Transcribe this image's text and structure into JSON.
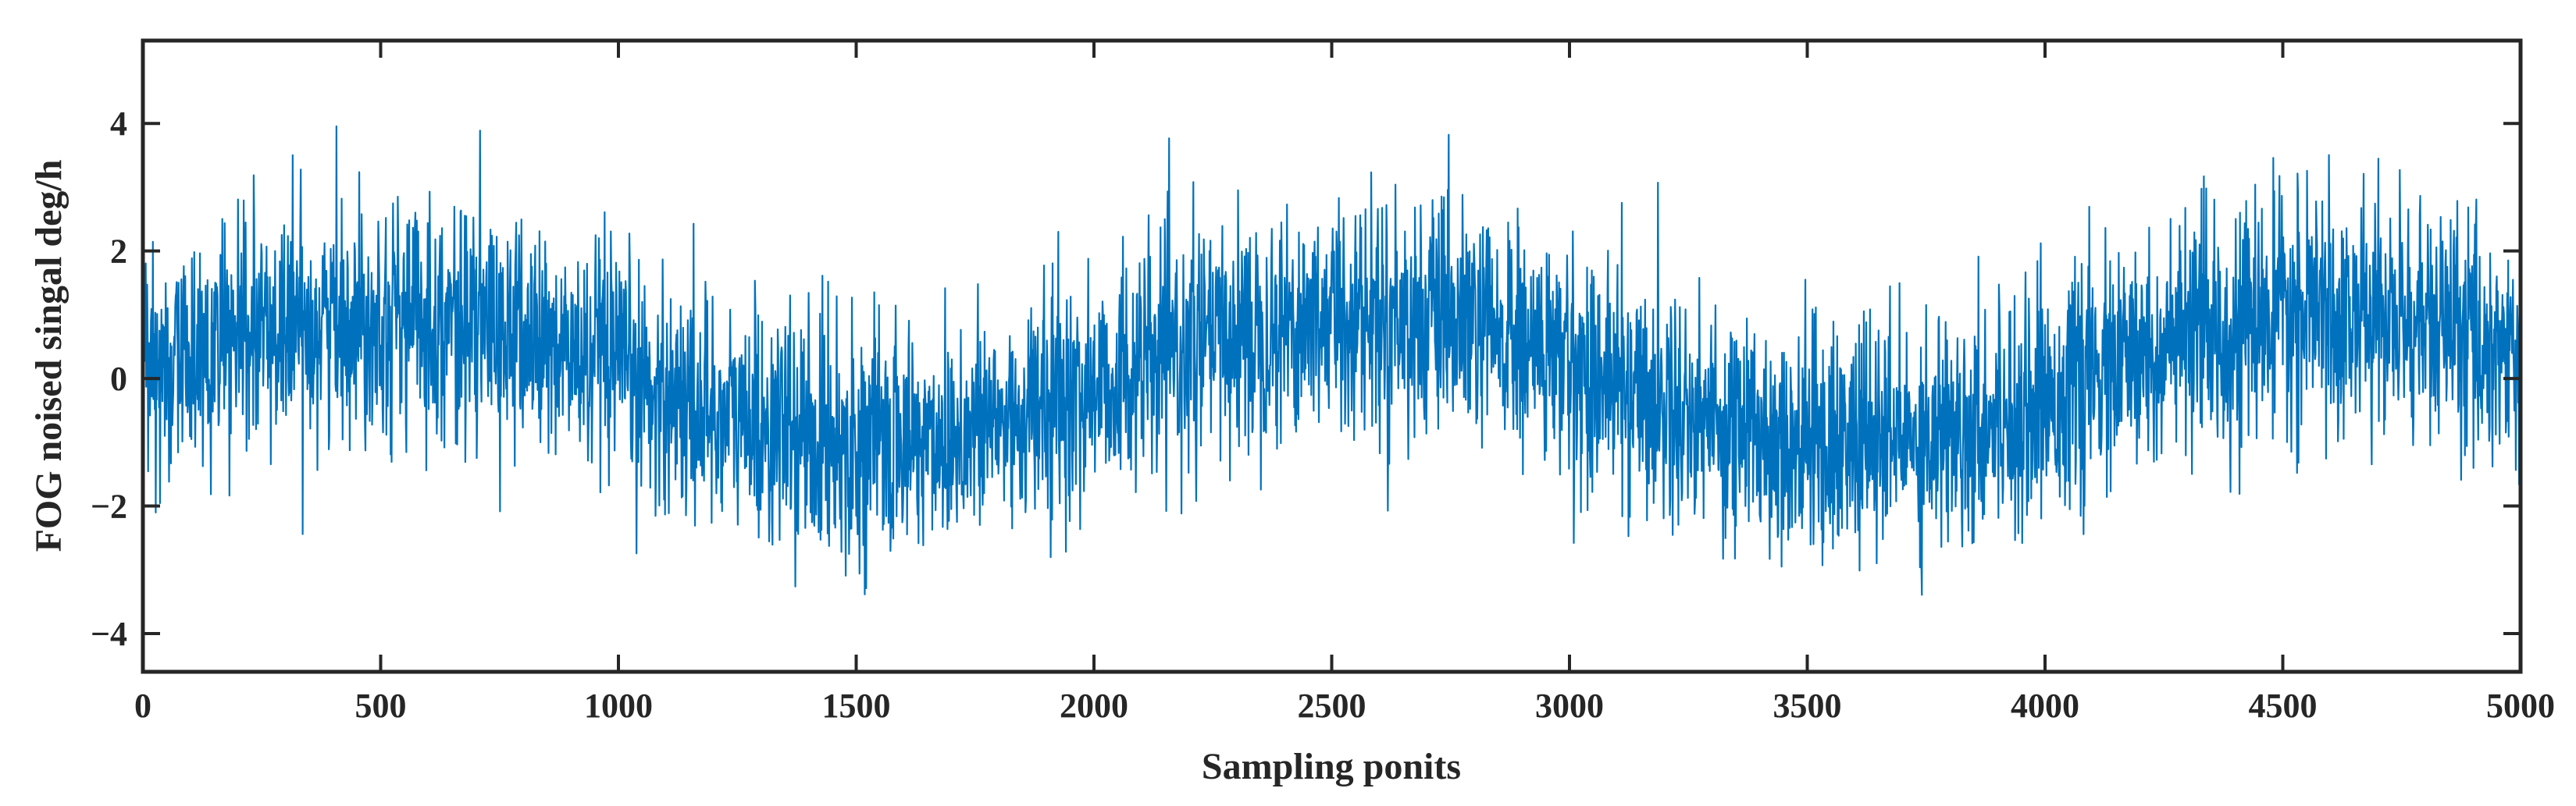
{
  "chart_data": {
    "type": "line",
    "title": "",
    "xlabel": "Sampling ponits",
    "ylabel": "FOG noised singal deg/h",
    "xlim": [
      0,
      5000
    ],
    "ylim": [
      -4.6,
      5.3
    ],
    "x_ticks": [
      0,
      500,
      1000,
      1500,
      2000,
      2500,
      3000,
      3500,
      4000,
      4500,
      5000
    ],
    "y_ticks": [
      -4,
      -2,
      0,
      2,
      4
    ],
    "x_tick_labels": [
      "0",
      "500",
      "1000",
      "1500",
      "2000",
      "2500",
      "3000",
      "3500",
      "4000",
      "4500",
      "5000"
    ],
    "y_tick_labels": [
      "−4",
      "−2",
      "0",
      "2",
      "4"
    ],
    "grid": false,
    "legend": "none",
    "series": [
      {
        "color": "#0072BD",
        "points": 5000,
        "x_start": 1,
        "x_end": 5000,
        "underlying_signal": "sinusoid",
        "amplitude": 1.0,
        "period": 2050,
        "noise_std": 0.9,
        "min": -3.9,
        "max": 4.8
      }
    ]
  }
}
